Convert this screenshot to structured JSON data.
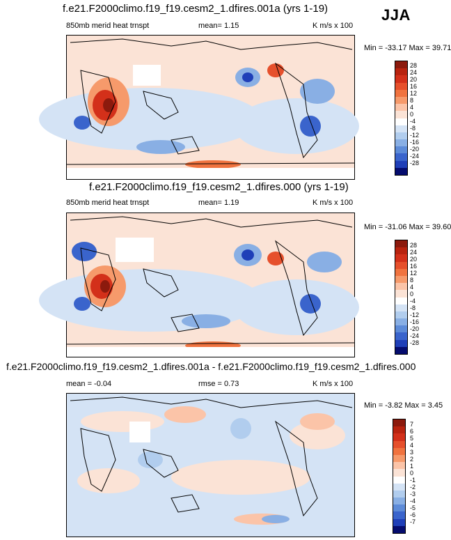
{
  "season": "JJA",
  "panels": [
    {
      "title": "f.e21.F2000climo.f19_f19.cesm2_1.dfires.001a (yrs 1-19)",
      "left_label": "850mb merid heat trnspt",
      "mid_label": "mean=  1.15",
      "units": "K m/s x 100",
      "minmax": "Min = -33.17 Max =  39.71",
      "levels": [
        "28",
        "24",
        "20",
        "16",
        "12",
        "8",
        "4",
        "0",
        "-4",
        "-8",
        "-12",
        "-16",
        "-20",
        "-24",
        "-28"
      ]
    },
    {
      "title": "f.e21.F2000climo.f19_f19.cesm2_1.dfires.000 (yrs 1-19)",
      "left_label": "850mb merid heat trnspt",
      "mid_label": "mean=  1.19",
      "units": "K m/s x 100",
      "minmax": "Min = -31.06 Max =  39.60",
      "levels": [
        "28",
        "24",
        "20",
        "16",
        "12",
        "8",
        "4",
        "0",
        "-4",
        "-8",
        "-12",
        "-16",
        "-20",
        "-24",
        "-28"
      ]
    },
    {
      "title": "f.e21.F2000climo.f19_f19.cesm2_1.dfires.001a - f.e21.F2000climo.f19_f19.cesm2_1.dfires.000",
      "left_label": "mean =  -0.04",
      "mid_label": "rmse =  0.73",
      "units": "K m/s x 100",
      "minmax": "Min =  -3.82 Max =  3.45",
      "levels": [
        "7",
        "6",
        "5",
        "4",
        "3",
        "2",
        "1",
        "0",
        "-1",
        "-2",
        "-3",
        "-4",
        "-5",
        "-6",
        "-7"
      ]
    }
  ],
  "colors": [
    "#8c1a0d",
    "#b8230f",
    "#d3301a",
    "#e6502c",
    "#f0733f",
    "#f69a6b",
    "#fbc4a8",
    "#fbe3d6",
    "#ffffff",
    "#d4e3f5",
    "#b1cdee",
    "#89afe4",
    "#5d8bd8",
    "#3a64cc",
    "#1f3fb8",
    "#0a1a9a",
    "#050c6e"
  ]
}
